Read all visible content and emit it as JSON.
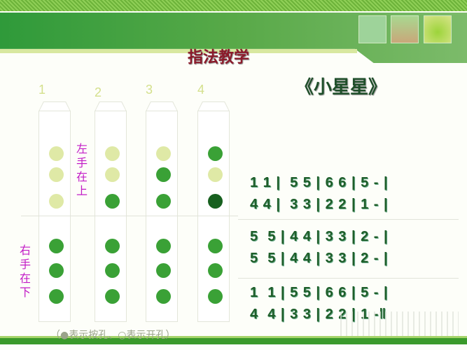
{
  "header": {
    "title": "指法教学",
    "song_title": "《小星星》"
  },
  "colors": {
    "open": "#dfe9a6",
    "closed": "#3aa136",
    "dark": "#17601f",
    "hand_label": "#c21bc6"
  },
  "columns": [
    {
      "label": "1",
      "holes": [
        "open",
        "open",
        "open",
        "closed",
        "closed",
        "closed"
      ]
    },
    {
      "label": "2",
      "holes": [
        "open",
        "open",
        "closed",
        "closed",
        "closed",
        "closed"
      ]
    },
    {
      "label": "3",
      "holes": [
        "open",
        "closed",
        "closed",
        "closed",
        "closed",
        "closed"
      ]
    },
    {
      "label": "4",
      "holes": [
        "closed",
        "open",
        "dark",
        "closed",
        "closed",
        "closed"
      ]
    }
  ],
  "hands": {
    "left": "左手在上",
    "right": "右手在下"
  },
  "notation": [
    "1 1 |  5 5 | 6 6 | 5 - |",
    "4 4 |  3 3 | 2 2 | 1 - |",
    "5  5 | 4 4 | 3 3 | 2 - |",
    "5  5 | 4 4 | 3 3 | 2 - |",
    "1  1 | 5 5 | 6 6 | 5 - |",
    "4  4 | 3 3 | 2 2 | 1 -‖"
  ],
  "legend": "（●表示按孔、○表示开孔）"
}
